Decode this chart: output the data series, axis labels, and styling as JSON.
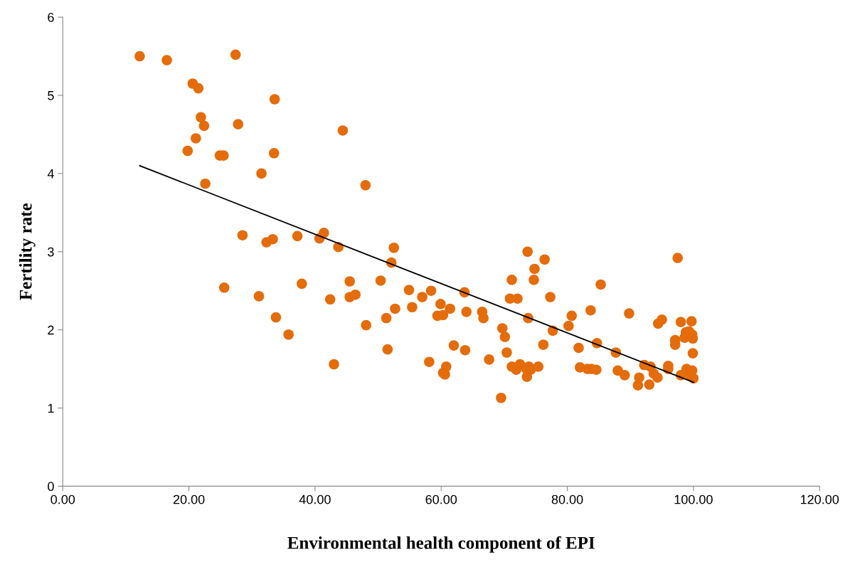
{
  "chart_data": {
    "type": "scatter",
    "xlabel": "Environmental health component of EPI",
    "ylabel": "Fertility rate",
    "xlim": [
      0,
      120
    ],
    "ylim": [
      0,
      6
    ],
    "xticks": [
      {
        "value": 0,
        "label": "0.00"
      },
      {
        "value": 20,
        "label": "20.00"
      },
      {
        "value": 40,
        "label": "40.00"
      },
      {
        "value": 60,
        "label": "60.00"
      },
      {
        "value": 80,
        "label": "80.00"
      },
      {
        "value": 100,
        "label": "100.00"
      },
      {
        "value": 120,
        "label": "120.00"
      }
    ],
    "yticks": [
      0,
      1,
      2,
      3,
      4,
      5,
      6
    ],
    "grid": false,
    "legend": false,
    "marker": "circle",
    "series": [
      {
        "color": "#e46c0a",
        "x": [
          12.2,
          16.5,
          20.6,
          21.5,
          21.9,
          21.1,
          22.4,
          19.8,
          27.4,
          27.8,
          33.6,
          33.5,
          24.9,
          25.5,
          22.6,
          31.5,
          44.4,
          28.5,
          32.3,
          33.3,
          37.2,
          41.4,
          40.7,
          43.7,
          25.6,
          31.1,
          33.8,
          35.8,
          37.9,
          42.4,
          45.5,
          45.5,
          46.4,
          43.0,
          48.1,
          48.0,
          52.1,
          52.5,
          50.4,
          51.3,
          51.5,
          52.7,
          54.9,
          55.4,
          57.0,
          58.4,
          58.1,
          59.4,
          59.9,
          60.3,
          60.3,
          60.6,
          60.8,
          62.0,
          61.4,
          63.7,
          64.0,
          63.8,
          66.5,
          66.7,
          67.6,
          69.5,
          69.7,
          70.1,
          70.4,
          71.2,
          70.9,
          72.1,
          71.2,
          71.9,
          72.5,
          73.5,
          73.6,
          74.2,
          73.9,
          73.7,
          73.8,
          74.8,
          74.7,
          75.4,
          76.2,
          76.4,
          77.3,
          77.7,
          80.2,
          80.7,
          81.8,
          82.0,
          83.2,
          83.8,
          83.7,
          84.6,
          84.7,
          85.3,
          87.7,
          88.0,
          89.1,
          89.8,
          91.2,
          91.4,
          92.2,
          93.0,
          93.2,
          93.7,
          94.3,
          94.4,
          95.0,
          96.0,
          96.0,
          97.1,
          97.1,
          97.5,
          98.0,
          98.0,
          98.6,
          98.8,
          98.9,
          99.5,
          99.7,
          99.8,
          99.9,
          99.9,
          99.8,
          100.0,
          99.3
        ],
        "values": [
          5.5,
          5.45,
          5.15,
          5.09,
          4.72,
          4.45,
          4.61,
          4.29,
          5.52,
          4.63,
          4.95,
          4.26,
          4.23,
          4.23,
          3.87,
          4.0,
          4.55,
          3.21,
          3.12,
          3.16,
          3.2,
          3.24,
          3.17,
          3.06,
          2.54,
          2.43,
          2.16,
          1.94,
          2.59,
          2.39,
          2.62,
          2.42,
          2.45,
          1.56,
          2.06,
          3.85,
          2.86,
          3.05,
          2.63,
          2.15,
          1.75,
          2.27,
          2.51,
          2.29,
          2.42,
          2.5,
          1.59,
          2.18,
          2.33,
          2.19,
          1.45,
          1.43,
          1.53,
          1.8,
          2.27,
          2.48,
          2.23,
          1.74,
          2.23,
          2.15,
          1.62,
          1.13,
          2.02,
          1.91,
          1.71,
          2.64,
          2.4,
          2.4,
          1.53,
          1.49,
          1.56,
          1.5,
          1.4,
          1.49,
          1.53,
          3.0,
          2.15,
          2.78,
          2.64,
          1.53,
          1.81,
          2.9,
          2.42,
          1.99,
          2.05,
          2.18,
          1.77,
          1.52,
          1.5,
          1.5,
          2.25,
          1.49,
          1.83,
          2.58,
          1.71,
          1.48,
          1.42,
          2.21,
          1.29,
          1.39,
          1.55,
          1.3,
          1.53,
          1.44,
          1.39,
          2.08,
          2.13,
          1.54,
          1.5,
          1.87,
          1.81,
          2.92,
          2.1,
          1.42,
          1.9,
          1.97,
          1.5,
          1.41,
          2.11,
          1.94,
          1.89,
          1.7,
          1.48,
          1.38,
          1.98
        ]
      },
      {
        "type": "line",
        "color": "#000000",
        "marker": "none",
        "line_style": "solid",
        "x": [
          12.2,
          100.0
        ],
        "values": [
          4.1,
          1.33
        ]
      }
    ]
  }
}
